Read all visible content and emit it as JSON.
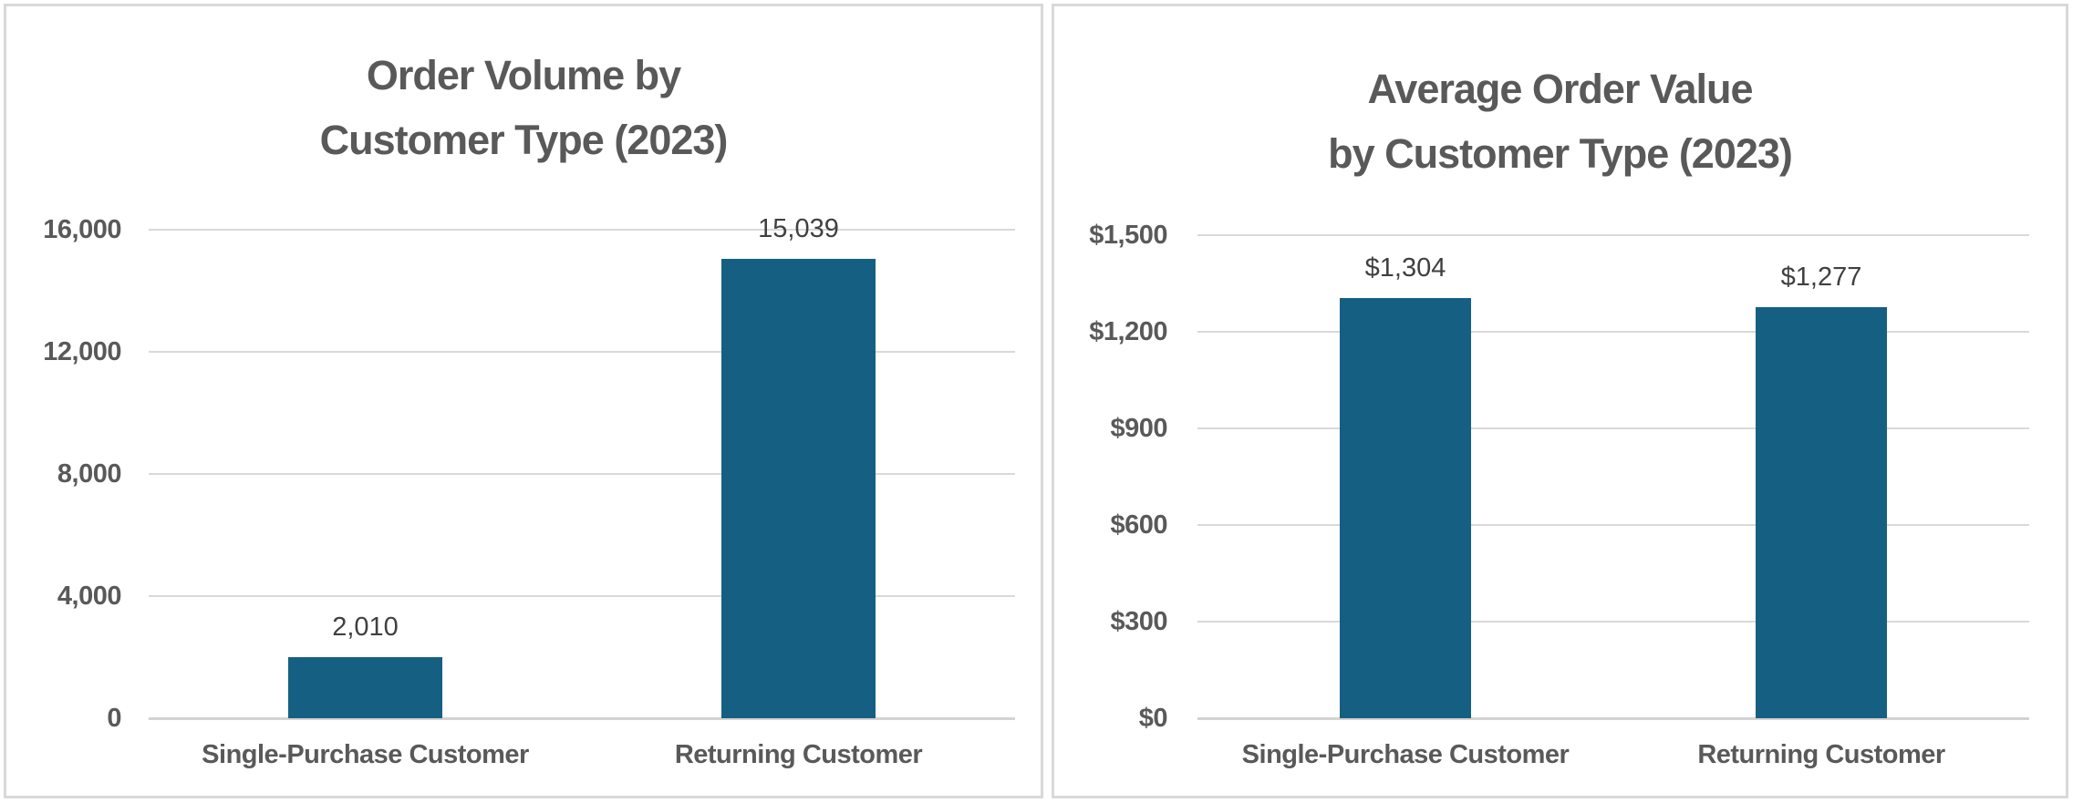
{
  "colors": {
    "bar_fill": "#156082",
    "gridline": "#d9d9d9",
    "axis_line": "#d3d3d3",
    "label_text": "#595959",
    "data_label_text": "#404040",
    "panel_border": "#d9d9d9",
    "background": "#ffffff"
  },
  "chart_data": [
    {
      "type": "bar",
      "title": "Order Volume by Customer Type (2023)",
      "title_lines": [
        "Order Volume by",
        "Customer Type (2023)"
      ],
      "categories": [
        "Single-Purchase Customer",
        "Returning Customer"
      ],
      "values": [
        2010,
        15039
      ],
      "value_labels": [
        "2,010",
        "15,039"
      ],
      "xlabel": "",
      "ylabel": "",
      "ylim": [
        0,
        16000
      ],
      "yticks": [
        0,
        4000,
        8000,
        12000,
        16000
      ],
      "ytick_labels": [
        "0",
        "4,000",
        "8,000",
        "12,000",
        "16,000"
      ],
      "grid": "horizontal",
      "legend": "none"
    },
    {
      "type": "bar",
      "title": "Average Order Value by Customer Type (2023)",
      "title_lines": [
        "Average Order Value",
        "by Customer Type (2023)"
      ],
      "categories": [
        "Single-Purchase Customer",
        "Returning Customer"
      ],
      "values": [
        1304,
        1277
      ],
      "value_labels": [
        "$1,304",
        "$1,277"
      ],
      "xlabel": "",
      "ylabel": "",
      "ylim": [
        0,
        1500
      ],
      "yticks": [
        0,
        300,
        600,
        900,
        1200,
        1500
      ],
      "ytick_labels": [
        "$0",
        "$300",
        "$600",
        "$900",
        "$1,200",
        "$1,500"
      ],
      "grid": "horizontal",
      "legend": "none"
    }
  ]
}
